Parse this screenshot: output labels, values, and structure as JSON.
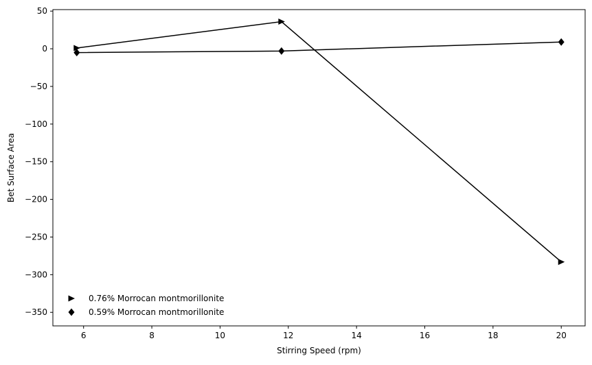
{
  "chart_data": {
    "type": "line",
    "xlabel": "Stirring Speed (rpm)",
    "ylabel": "Bet Surface Area",
    "xlim": [
      5.1,
      20.7
    ],
    "ylim": [
      -368,
      52
    ],
    "x_ticks": [
      6,
      8,
      10,
      12,
      14,
      16,
      18,
      20
    ],
    "y_ticks": [
      50,
      0,
      -50,
      -100,
      -150,
      -200,
      -250,
      -300,
      -350
    ],
    "x_tick_labels": [
      "6",
      "8",
      "10",
      "12",
      "14",
      "16",
      "18",
      "20"
    ],
    "y_tick_labels": [
      "50",
      "0",
      "−50",
      "−100",
      "−150",
      "−200",
      "−250",
      "−300",
      "−350"
    ],
    "grid": false,
    "legend_position": "lower-left",
    "series": [
      {
        "name": "0.76% Morrocan montmorillonite",
        "marker": "triangle-right",
        "color": "#000000",
        "x": [
          5.8,
          11.8,
          20.0
        ],
        "y": [
          1,
          36,
          -283
        ]
      },
      {
        "name": "0.59% Morrocan montmorillonite",
        "marker": "diamond",
        "color": "#000000",
        "x": [
          5.8,
          11.8,
          20.0
        ],
        "y": [
          -5,
          -3,
          9
        ]
      }
    ]
  }
}
